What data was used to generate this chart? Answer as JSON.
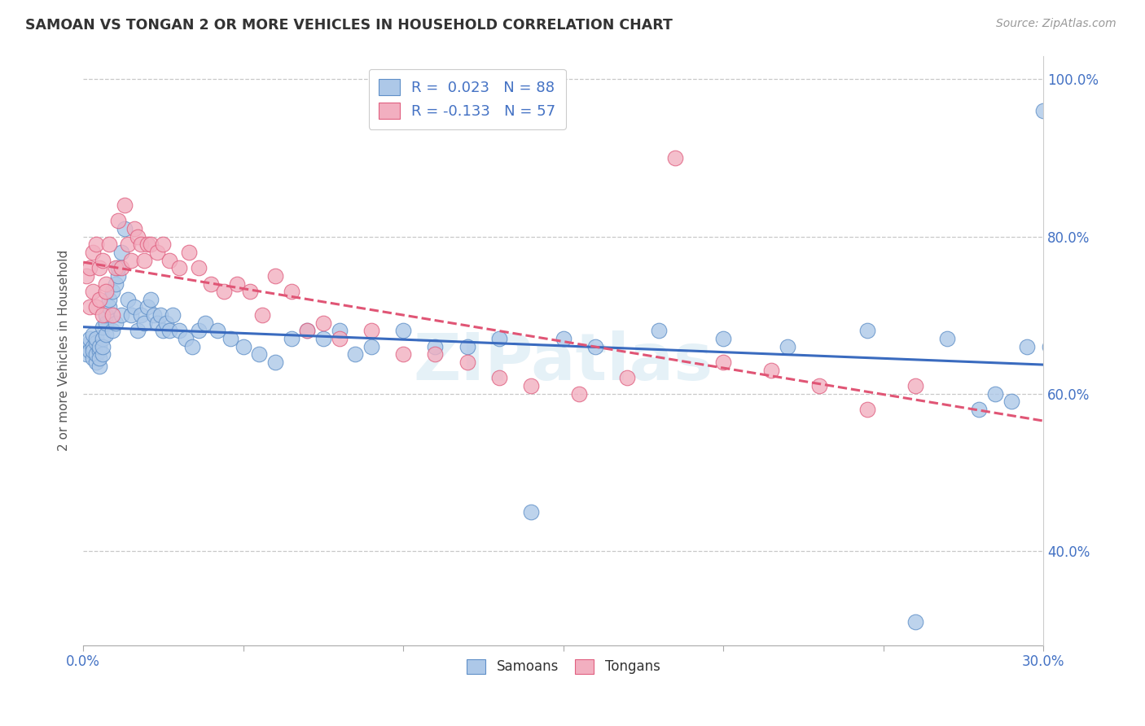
{
  "title": "SAMOAN VS TONGAN 2 OR MORE VEHICLES IN HOUSEHOLD CORRELATION CHART",
  "source": "Source: ZipAtlas.com",
  "ylabel": "2 or more Vehicles in Household",
  "xmin": 0.0,
  "xmax": 0.3,
  "ymin": 0.28,
  "ymax": 1.03,
  "samoans_R": 0.023,
  "samoans_N": 88,
  "tongans_R": -0.133,
  "tongans_N": 57,
  "samoan_color": "#adc8e8",
  "tongan_color": "#f2afc0",
  "samoan_edge_color": "#6090c8",
  "tongan_edge_color": "#e06080",
  "samoan_line_color": "#3a6bbf",
  "tongan_line_color": "#e05575",
  "legend_label_samoan": "Samoans",
  "legend_label_tongan": "Tongans",
  "watermark": "ZIPatlas",
  "grid_color": "#c8c8c8",
  "ytick_vals": [
    0.4,
    0.6,
    0.8,
    1.0
  ],
  "ytick_labels": [
    "40.0%",
    "60.0%",
    "80.0%",
    "100.0%"
  ],
  "xtick_vals": [
    0.0,
    0.05,
    0.1,
    0.15,
    0.2,
    0.25,
    0.3
  ],
  "samoans_x": [
    0.001,
    0.001,
    0.002,
    0.002,
    0.002,
    0.003,
    0.003,
    0.003,
    0.003,
    0.004,
    0.004,
    0.004,
    0.004,
    0.005,
    0.005,
    0.005,
    0.005,
    0.006,
    0.006,
    0.006,
    0.006,
    0.007,
    0.007,
    0.007,
    0.008,
    0.008,
    0.009,
    0.009,
    0.01,
    0.01,
    0.011,
    0.011,
    0.012,
    0.012,
    0.013,
    0.014,
    0.015,
    0.016,
    0.017,
    0.018,
    0.019,
    0.02,
    0.021,
    0.022,
    0.023,
    0.024,
    0.025,
    0.026,
    0.027,
    0.028,
    0.03,
    0.032,
    0.034,
    0.036,
    0.038,
    0.042,
    0.046,
    0.05,
    0.055,
    0.06,
    0.065,
    0.07,
    0.075,
    0.08,
    0.085,
    0.09,
    0.1,
    0.11,
    0.12,
    0.13,
    0.14,
    0.15,
    0.16,
    0.18,
    0.2,
    0.22,
    0.245,
    0.26,
    0.27,
    0.28,
    0.285,
    0.29,
    0.295,
    0.3,
    0.302,
    0.305,
    0.31,
    0.315
  ],
  "samoans_y": [
    0.66,
    0.65,
    0.665,
    0.655,
    0.67,
    0.645,
    0.66,
    0.655,
    0.675,
    0.64,
    0.65,
    0.665,
    0.67,
    0.635,
    0.655,
    0.645,
    0.66,
    0.65,
    0.67,
    0.66,
    0.685,
    0.675,
    0.69,
    0.7,
    0.71,
    0.72,
    0.73,
    0.68,
    0.74,
    0.69,
    0.75,
    0.76,
    0.78,
    0.7,
    0.81,
    0.72,
    0.7,
    0.71,
    0.68,
    0.7,
    0.69,
    0.71,
    0.72,
    0.7,
    0.69,
    0.7,
    0.68,
    0.69,
    0.68,
    0.7,
    0.68,
    0.67,
    0.66,
    0.68,
    0.69,
    0.68,
    0.67,
    0.66,
    0.65,
    0.64,
    0.67,
    0.68,
    0.67,
    0.68,
    0.65,
    0.66,
    0.68,
    0.66,
    0.66,
    0.67,
    0.45,
    0.67,
    0.66,
    0.68,
    0.67,
    0.66,
    0.68,
    0.31,
    0.67,
    0.58,
    0.6,
    0.59,
    0.66,
    0.96,
    0.66,
    0.65,
    0.66,
    0.655
  ],
  "tongans_x": [
    0.001,
    0.002,
    0.002,
    0.003,
    0.003,
    0.004,
    0.004,
    0.005,
    0.005,
    0.006,
    0.006,
    0.007,
    0.007,
    0.008,
    0.009,
    0.01,
    0.011,
    0.012,
    0.013,
    0.014,
    0.015,
    0.016,
    0.017,
    0.018,
    0.019,
    0.02,
    0.021,
    0.023,
    0.025,
    0.027,
    0.03,
    0.033,
    0.036,
    0.04,
    0.044,
    0.048,
    0.052,
    0.056,
    0.06,
    0.065,
    0.07,
    0.075,
    0.08,
    0.09,
    0.1,
    0.11,
    0.12,
    0.13,
    0.14,
    0.155,
    0.17,
    0.185,
    0.2,
    0.215,
    0.23,
    0.245,
    0.26
  ],
  "tongans_y": [
    0.75,
    0.76,
    0.71,
    0.78,
    0.73,
    0.79,
    0.71,
    0.76,
    0.72,
    0.77,
    0.7,
    0.74,
    0.73,
    0.79,
    0.7,
    0.76,
    0.82,
    0.76,
    0.84,
    0.79,
    0.77,
    0.81,
    0.8,
    0.79,
    0.77,
    0.79,
    0.79,
    0.78,
    0.79,
    0.77,
    0.76,
    0.78,
    0.76,
    0.74,
    0.73,
    0.74,
    0.73,
    0.7,
    0.75,
    0.73,
    0.68,
    0.69,
    0.67,
    0.68,
    0.65,
    0.65,
    0.64,
    0.62,
    0.61,
    0.6,
    0.62,
    0.9,
    0.64,
    0.63,
    0.61,
    0.58,
    0.61
  ]
}
